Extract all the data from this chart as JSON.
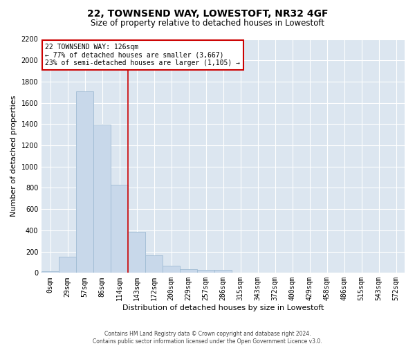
{
  "title": "22, TOWNSEND WAY, LOWESTOFT, NR32 4GF",
  "subtitle": "Size of property relative to detached houses in Lowestoft",
  "xlabel": "Distribution of detached houses by size in Lowestoft",
  "ylabel": "Number of detached properties",
  "bar_color": "#c8d8ea",
  "bar_edgecolor": "#a0bcd4",
  "background_color": "#dce6f0",
  "categories": [
    "0sqm",
    "29sqm",
    "57sqm",
    "86sqm",
    "114sqm",
    "143sqm",
    "172sqm",
    "200sqm",
    "229sqm",
    "257sqm",
    "286sqm",
    "315sqm",
    "343sqm",
    "372sqm",
    "400sqm",
    "429sqm",
    "458sqm",
    "486sqm",
    "515sqm",
    "543sqm",
    "572sqm"
  ],
  "values": [
    18,
    155,
    1710,
    1395,
    830,
    385,
    165,
    70,
    33,
    27,
    27,
    0,
    0,
    0,
    0,
    0,
    0,
    0,
    0,
    0,
    0
  ],
  "ylim": [
    0,
    2200
  ],
  "yticks": [
    0,
    200,
    400,
    600,
    800,
    1000,
    1200,
    1400,
    1600,
    1800,
    2000,
    2200
  ],
  "property_name": "22 TOWNSEND WAY: 126sqm",
  "annotation_line1": "← 77% of detached houses are smaller (3,667)",
  "annotation_line2": "23% of semi-detached houses are larger (1,105) →",
  "vline_x": 4.5,
  "annotation_box_facecolor": "#ffffff",
  "annotation_box_edgecolor": "#cc0000",
  "vline_color": "#cc0000",
  "footer1": "Contains HM Land Registry data © Crown copyright and database right 2024.",
  "footer2": "Contains public sector information licensed under the Open Government Licence v3.0.",
  "title_fontsize": 10,
  "subtitle_fontsize": 8.5,
  "ylabel_fontsize": 8,
  "xlabel_fontsize": 8,
  "tick_fontsize": 7,
  "annotation_fontsize": 7,
  "footer_fontsize": 5.5
}
